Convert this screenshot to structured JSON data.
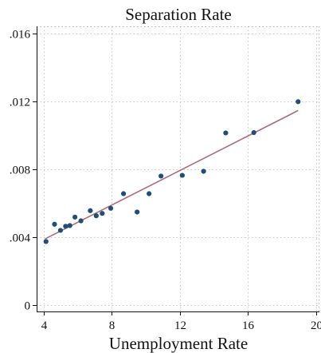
{
  "colors": {
    "points": "#1f4f78",
    "fit_line": "#b06a78",
    "grid": "#c8c8c8",
    "axis": "#111111",
    "background": "#ffffff"
  },
  "chart_data": {
    "type": "scatter",
    "title": "Separation Rate",
    "xlabel": "Unemployment Rate",
    "ylabel": "",
    "xlim": [
      3.6,
      20.2
    ],
    "ylim": [
      -0.0004,
      0.0164
    ],
    "x_ticks": [
      4,
      8,
      12,
      16,
      20
    ],
    "x_tick_labels": [
      "4",
      "8",
      "12",
      "16",
      "20"
    ],
    "y_ticks": [
      0,
      0.004,
      0.008,
      0.012,
      0.016
    ],
    "y_tick_labels": [
      "0",
      ".004",
      ".008",
      ".012",
      ".016"
    ],
    "grid": true,
    "legend": "none",
    "series": [
      {
        "x": [
          4.15,
          4.65,
          5.0,
          5.3,
          5.55,
          5.85,
          6.2,
          6.75,
          7.1,
          7.45,
          7.95,
          8.7,
          9.5,
          10.2,
          10.9,
          12.15,
          13.4,
          14.7,
          16.35,
          18.95
        ],
        "y": [
          0.00372,
          0.00474,
          0.00438,
          0.00462,
          0.00466,
          0.00516,
          0.00494,
          0.00554,
          0.00524,
          0.00538,
          0.00568,
          0.00654,
          0.00546,
          0.00654,
          0.00758,
          0.00762,
          0.00786,
          0.01012,
          0.01014,
          0.01196
        ]
      }
    ],
    "fit_line": {
      "x": [
        4.1,
        18.95
      ],
      "y": [
        0.00388,
        0.01144
      ]
    }
  }
}
